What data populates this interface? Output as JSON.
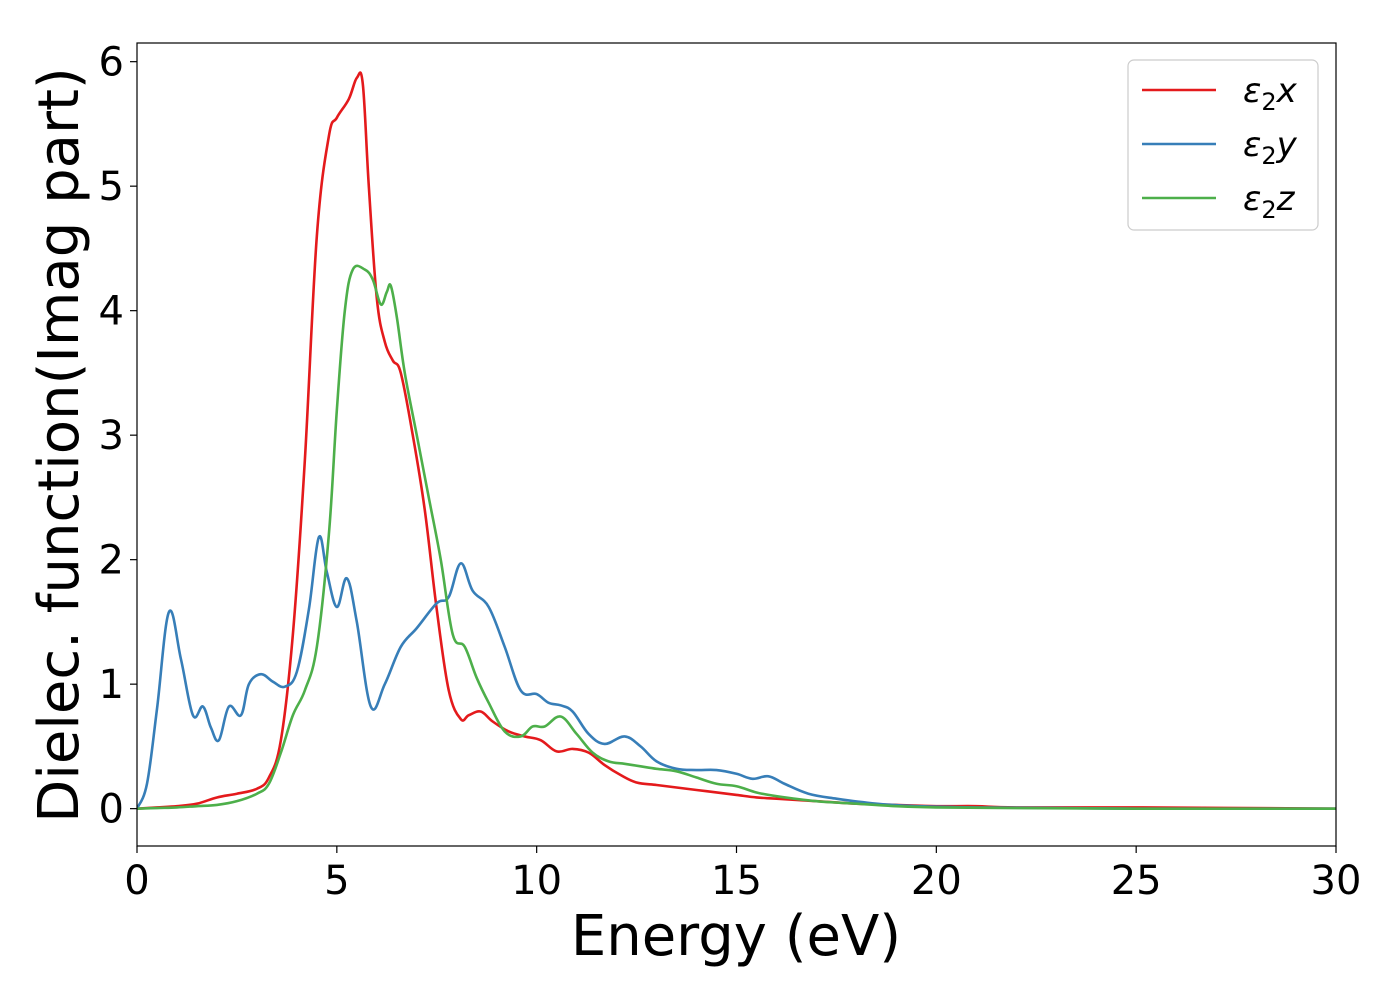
{
  "chart_data": {
    "type": "line",
    "xlabel": "Energy (eV)",
    "ylabel": "Dielec. function(Imag part)",
    "xlim": [
      0,
      30
    ],
    "ylim": [
      -0.3,
      6.15
    ],
    "xticks": [
      0,
      5,
      10,
      15,
      20,
      25,
      30
    ],
    "yticks": [
      0,
      1,
      2,
      3,
      4,
      5,
      6
    ],
    "grid": false,
    "legend_position": "top-right",
    "series": [
      {
        "name": "ε₂x",
        "legend_base": "ε",
        "legend_sub": "2",
        "legend_suffix": "x",
        "color": "#e41a1c",
        "x": [
          0,
          0.5,
          1.0,
          1.5,
          2.0,
          2.5,
          3.0,
          3.3,
          3.6,
          3.9,
          4.2,
          4.5,
          4.8,
          5.0,
          5.3,
          5.5,
          5.65,
          5.8,
          6.0,
          6.2,
          6.4,
          6.6,
          6.9,
          7.2,
          7.5,
          7.8,
          8.1,
          8.3,
          8.6,
          8.9,
          9.3,
          9.7,
          10.1,
          10.5,
          10.9,
          11.3,
          11.7,
          12.1,
          12.5,
          13.0,
          13.5,
          14.0,
          14.5,
          15.0,
          15.5,
          16.0,
          17.0,
          18.0,
          19.0,
          20.0,
          21.0,
          22.0,
          25.0,
          30.0
        ],
        "y": [
          0,
          0.01,
          0.02,
          0.04,
          0.09,
          0.12,
          0.16,
          0.25,
          0.55,
          1.4,
          2.8,
          4.6,
          5.4,
          5.55,
          5.7,
          5.87,
          5.82,
          5.0,
          4.1,
          3.75,
          3.6,
          3.5,
          3.0,
          2.4,
          1.6,
          0.95,
          0.72,
          0.75,
          0.78,
          0.7,
          0.62,
          0.58,
          0.55,
          0.46,
          0.48,
          0.45,
          0.35,
          0.27,
          0.21,
          0.19,
          0.17,
          0.15,
          0.13,
          0.11,
          0.09,
          0.08,
          0.06,
          0.04,
          0.03,
          0.02,
          0.02,
          0.01,
          0.01,
          0.0
        ]
      },
      {
        "name": "ε₂y",
        "legend_base": "ε",
        "legend_sub": "2",
        "legend_suffix": "y",
        "color": "#377eb8",
        "x": [
          0,
          0.25,
          0.5,
          0.8,
          1.1,
          1.4,
          1.65,
          1.85,
          2.05,
          2.3,
          2.6,
          2.8,
          3.1,
          3.4,
          3.7,
          4.0,
          4.3,
          4.55,
          4.75,
          5.0,
          5.25,
          5.5,
          5.85,
          6.2,
          6.6,
          7.0,
          7.5,
          7.8,
          8.1,
          8.4,
          8.8,
          9.2,
          9.6,
          10.0,
          10.3,
          10.6,
          10.9,
          11.3,
          11.7,
          12.2,
          12.6,
          13.0,
          13.5,
          14.0,
          14.5,
          15.0,
          15.4,
          15.8,
          16.2,
          16.8,
          17.5,
          18.5,
          19.5,
          21.0,
          25.0,
          30.0
        ],
        "y": [
          0.0,
          0.2,
          0.8,
          1.58,
          1.2,
          0.75,
          0.82,
          0.65,
          0.55,
          0.82,
          0.75,
          1.0,
          1.08,
          1.02,
          0.98,
          1.1,
          1.6,
          2.18,
          1.9,
          1.62,
          1.85,
          1.5,
          0.82,
          1.0,
          1.3,
          1.45,
          1.65,
          1.7,
          1.97,
          1.75,
          1.62,
          1.3,
          0.95,
          0.92,
          0.85,
          0.83,
          0.78,
          0.6,
          0.52,
          0.58,
          0.5,
          0.38,
          0.32,
          0.31,
          0.31,
          0.28,
          0.24,
          0.26,
          0.2,
          0.12,
          0.08,
          0.04,
          0.02,
          0.01,
          0.0,
          0.0
        ]
      },
      {
        "name": "ε₂z",
        "legend_base": "ε",
        "legend_sub": "2",
        "legend_suffix": "z",
        "color": "#4daf4a",
        "x": [
          0,
          0.5,
          1.0,
          1.5,
          2.0,
          2.5,
          3.0,
          3.3,
          3.6,
          3.9,
          4.2,
          4.5,
          4.8,
          5.0,
          5.2,
          5.4,
          5.7,
          5.9,
          6.1,
          6.25,
          6.35,
          6.5,
          6.7,
          7.0,
          7.3,
          7.6,
          7.9,
          8.2,
          8.5,
          8.8,
          9.2,
          9.6,
          9.9,
          10.2,
          10.6,
          11.0,
          11.4,
          11.8,
          12.2,
          12.6,
          13.0,
          13.5,
          14.0,
          14.5,
          15.0,
          15.5,
          16.0,
          17.0,
          18.0,
          19.0,
          20.0,
          22.0,
          25.0,
          30.0
        ],
        "y": [
          0,
          0.005,
          0.01,
          0.02,
          0.03,
          0.06,
          0.12,
          0.2,
          0.45,
          0.75,
          0.95,
          1.3,
          2.2,
          3.2,
          4.0,
          4.33,
          4.33,
          4.25,
          4.05,
          4.15,
          4.2,
          3.95,
          3.5,
          3.0,
          2.5,
          2.0,
          1.4,
          1.3,
          1.05,
          0.85,
          0.62,
          0.58,
          0.66,
          0.66,
          0.74,
          0.6,
          0.45,
          0.38,
          0.36,
          0.34,
          0.32,
          0.3,
          0.25,
          0.2,
          0.18,
          0.13,
          0.1,
          0.06,
          0.04,
          0.02,
          0.01,
          0.005,
          0.0,
          0.0
        ]
      }
    ]
  }
}
